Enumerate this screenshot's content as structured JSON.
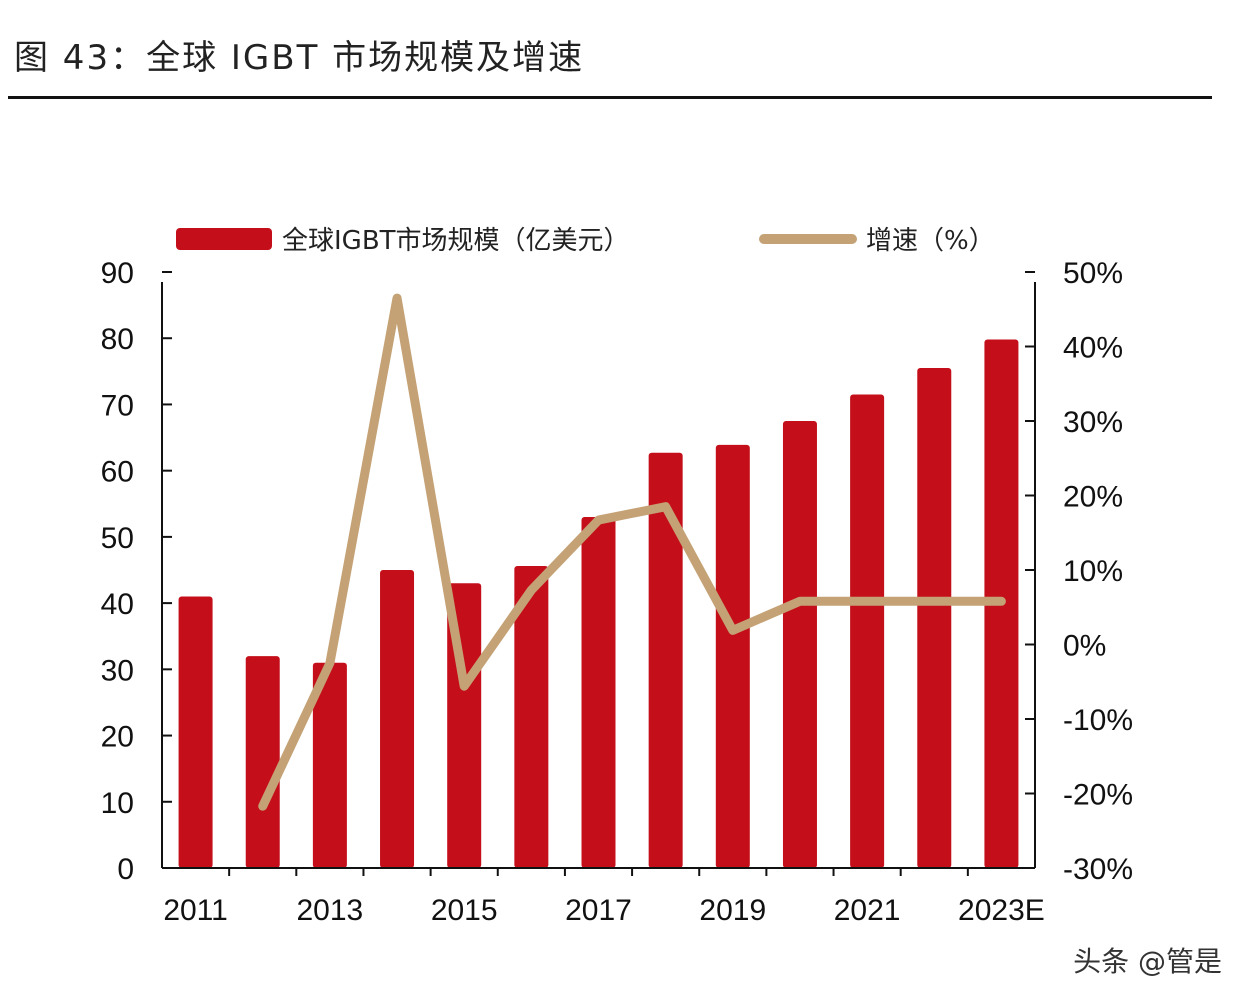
{
  "title": "图 43：全球 IGBT 市场规模及增速",
  "watermark": "头条 @管是",
  "chart_data": {
    "type": "bar+line",
    "categories": [
      "2011",
      "2012",
      "2013",
      "2014",
      "2015",
      "2016",
      "2017",
      "2018",
      "2019",
      "2020",
      "2021",
      "2022",
      "2023E"
    ],
    "x_tick_labels": [
      "2011",
      "2013",
      "2015",
      "2017",
      "2019",
      "2021",
      "2023E"
    ],
    "series": [
      {
        "name": "全球IGBT市场规模（亿美元）",
        "type": "bar",
        "axis": "left",
        "color": "#c40f1a",
        "values": [
          41,
          32,
          31,
          45,
          43,
          45.6,
          53,
          62.7,
          63.9,
          67.5,
          71.5,
          75.5,
          79.8
        ]
      },
      {
        "name": "增速（%）",
        "type": "line",
        "axis": "right",
        "color": "#c4a275",
        "values": [
          null,
          -21.7,
          -2.5,
          46.5,
          -5.6,
          7.3,
          16.7,
          18.5,
          1.9,
          5.8,
          5.8,
          5.8,
          5.8
        ]
      }
    ],
    "left_axis": {
      "ylim": [
        0,
        90
      ],
      "ticks": [
        "0",
        "10",
        "20",
        "30",
        "40",
        "50",
        "60",
        "70",
        "80",
        "90"
      ]
    },
    "right_axis": {
      "ylim": [
        -30,
        50
      ],
      "ticks": [
        "-30%",
        "-20%",
        "-10%",
        "0%",
        "10%",
        "20%",
        "30%",
        "40%",
        "50%"
      ]
    },
    "legend_position": "top",
    "grid": false
  }
}
